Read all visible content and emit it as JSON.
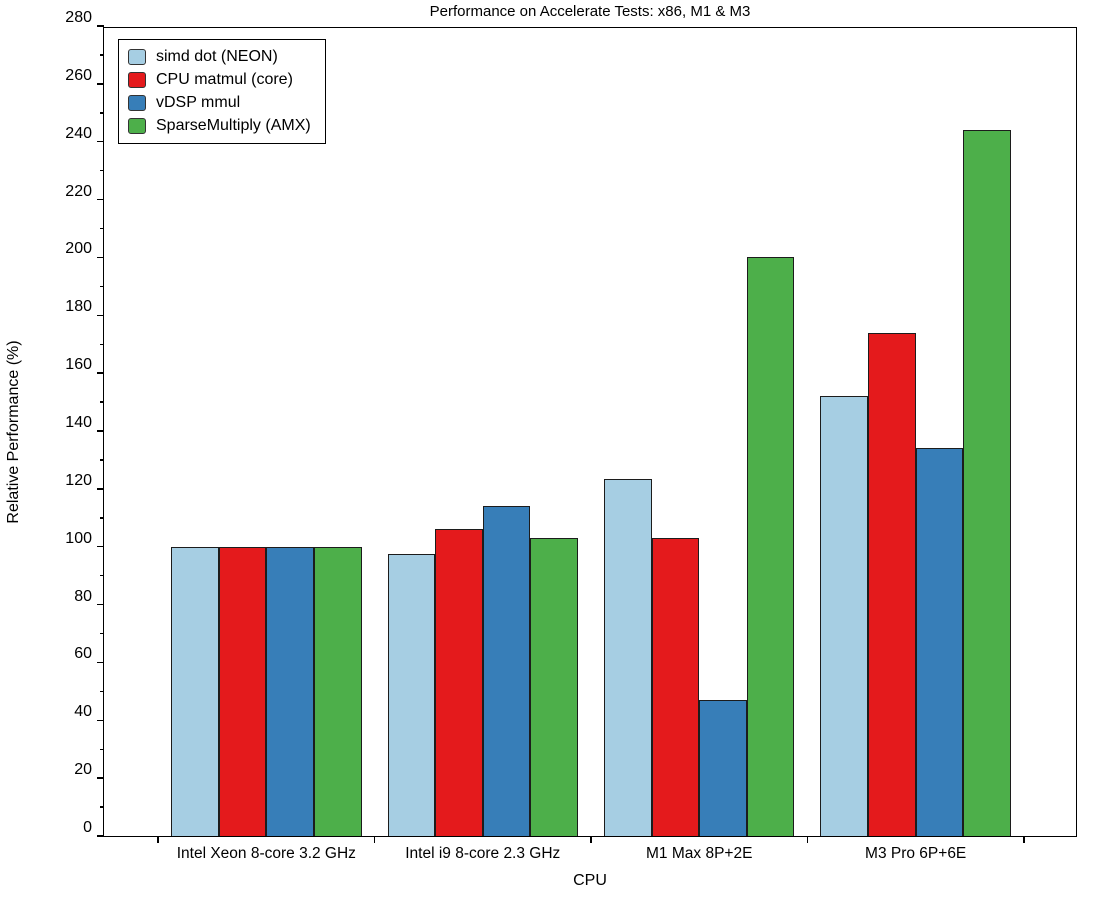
{
  "title": "Performance on Accelerate Tests: x86, M1 & M3",
  "chart_data": {
    "type": "bar",
    "title": "Performance on Accelerate Tests: x86, M1 & M3",
    "xlabel": "CPU",
    "ylabel": "Relative Performance (%)",
    "ylim": [
      0,
      280
    ],
    "ytick_step": 20,
    "ytick_minor_step": 10,
    "grid": false,
    "legend_position": "upper-left",
    "frame": "full-box",
    "categories": [
      "Intel Xeon 8-core 3.2 GHz",
      "Intel i9 8-core 2.3 GHz",
      "M1 Max 8P+2E",
      "M3 Pro 6P+6E"
    ],
    "series": [
      {
        "name": "simd dot (NEON)",
        "color": "#a6cee3",
        "values": [
          100,
          97.5,
          123.5,
          152
        ]
      },
      {
        "name": "CPU matmul (core)",
        "color": "#e41a1c",
        "values": [
          100,
          106,
          103,
          174
        ]
      },
      {
        "name": "vDSP mmul",
        "color": "#377eb8",
        "values": [
          100,
          114,
          47,
          134
        ]
      },
      {
        "name": "SparseMultiply (AMX)",
        "color": "#4daf4a",
        "values": [
          100,
          103,
          200,
          244
        ]
      }
    ]
  }
}
